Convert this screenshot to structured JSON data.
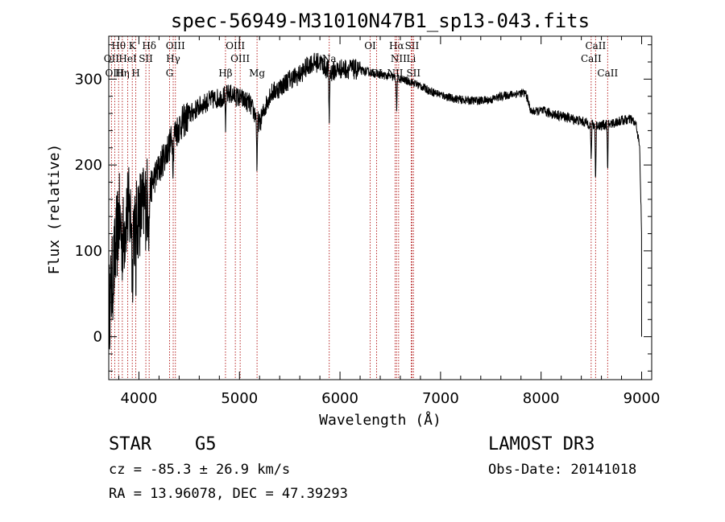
{
  "chart_data": {
    "type": "line",
    "title": "spec-56949-M31010N47B1_sp13-043.fits",
    "xlabel": "Wavelength (Å)",
    "ylabel": "Flux (relative)",
    "xlim": [
      3700,
      9100
    ],
    "ylim": [
      -50,
      350
    ],
    "xticks": [
      4000,
      5000,
      6000,
      7000,
      8000,
      9000
    ],
    "yticks": [
      0,
      100,
      200,
      300
    ],
    "grid": false,
    "spectrum_anchors": [
      [
        3700,
        30
      ],
      [
        3760,
        90
      ],
      [
        3800,
        140
      ],
      [
        3840,
        110
      ],
      [
        3880,
        150
      ],
      [
        3950,
        130
      ],
      [
        4000,
        145
      ],
      [
        4050,
        150
      ],
      [
        4100,
        165
      ],
      [
        4150,
        185
      ],
      [
        4200,
        195
      ],
      [
        4250,
        210
      ],
      [
        4300,
        222
      ],
      [
        4350,
        235
      ],
      [
        4400,
        245
      ],
      [
        4500,
        258
      ],
      [
        4600,
        268
      ],
      [
        4700,
        275
      ],
      [
        4800,
        278
      ],
      [
        4900,
        283
      ],
      [
        5000,
        278
      ],
      [
        5100,
        272
      ],
      [
        5200,
        248
      ],
      [
        5300,
        282
      ],
      [
        5400,
        290
      ],
      [
        5500,
        300
      ],
      [
        5600,
        305
      ],
      [
        5700,
        318
      ],
      [
        5800,
        320
      ],
      [
        5900,
        308
      ],
      [
        6000,
        312
      ],
      [
        6100,
        312
      ],
      [
        6200,
        310
      ],
      [
        6300,
        308
      ],
      [
        6400,
        305
      ],
      [
        6500,
        303
      ],
      [
        6600,
        300
      ],
      [
        6700,
        297
      ],
      [
        6800,
        292
      ],
      [
        6900,
        286
      ],
      [
        7000,
        282
      ],
      [
        7100,
        278
      ],
      [
        7200,
        276
      ],
      [
        7300,
        275
      ],
      [
        7400,
        275
      ],
      [
        7500,
        276
      ],
      [
        7600,
        280
      ],
      [
        7700,
        282
      ],
      [
        7800,
        284
      ],
      [
        7850,
        283
      ],
      [
        7900,
        262
      ],
      [
        8000,
        263
      ],
      [
        8100,
        260
      ],
      [
        8200,
        257
      ],
      [
        8300,
        254
      ],
      [
        8400,
        251
      ],
      [
        8500,
        247
      ],
      [
        8600,
        246
      ],
      [
        8700,
        248
      ],
      [
        8800,
        252
      ],
      [
        8900,
        253
      ],
      [
        8950,
        245
      ],
      [
        8980,
        220
      ],
      [
        9000,
        120
      ]
    ],
    "absorption_dips": [
      [
        3934,
        80
      ],
      [
        3969,
        70
      ],
      [
        4102,
        40
      ],
      [
        4340,
        35
      ],
      [
        4861,
        45
      ],
      [
        5175,
        70
      ],
      [
        5893,
        60
      ],
      [
        6563,
        40
      ],
      [
        8498,
        45
      ],
      [
        8542,
        70
      ],
      [
        8662,
        60
      ]
    ],
    "line_markers": [
      {
        "label": "Hθ",
        "x": 3798,
        "row": 1
      },
      {
        "label": "OII",
        "x": 3727,
        "row": 2
      },
      {
        "label": "OIII",
        "x": 3760,
        "row": 3
      },
      {
        "label": "Hη",
        "x": 3835,
        "row": 3
      },
      {
        "label": "K",
        "x": 3934,
        "row": 1
      },
      {
        "label": "HeI",
        "x": 3889,
        "row": 2
      },
      {
        "label": "H",
        "x": 3969,
        "row": 3
      },
      {
        "label": "Hδ",
        "x": 4102,
        "row": 1
      },
      {
        "label": "SII",
        "x": 4069,
        "row": 2
      },
      {
        "label": "OIII",
        "x": 4363,
        "row": 1
      },
      {
        "label": "Hγ",
        "x": 4341,
        "row": 2
      },
      {
        "label": "G",
        "x": 4305,
        "row": 3
      },
      {
        "label": "Hβ",
        "x": 4861,
        "row": 3
      },
      {
        "label": "OIII",
        "x": 4959,
        "row": 1
      },
      {
        "label": "OIII",
        "x": 5007,
        "row": 2
      },
      {
        "label": "Mg",
        "x": 5175,
        "row": 3
      },
      {
        "label": "Na",
        "x": 5893,
        "row": 2
      },
      {
        "label": "OI",
        "x": 6300,
        "row": 1
      },
      {
        "label": "OI",
        "x": 6364,
        "row": 3
      },
      {
        "label": "Hα",
        "x": 6563,
        "row": 1
      },
      {
        "label": "NII",
        "x": 6583,
        "row": 2
      },
      {
        "label": "NII",
        "x": 6548,
        "row": 3
      },
      {
        "label": "SII",
        "x": 6716,
        "row": 1
      },
      {
        "label": "Li",
        "x": 6708,
        "row": 2
      },
      {
        "label": "SII",
        "x": 6731,
        "row": 3
      },
      {
        "label": "CaII",
        "x": 8542,
        "row": 1
      },
      {
        "label": "CaII",
        "x": 8498,
        "row": 2
      },
      {
        "label": "CaII",
        "x": 8662,
        "row": 3
      }
    ]
  },
  "info": {
    "class": "STAR",
    "subclass": "G5",
    "survey": "LAMOST DR3",
    "cz": "cz = -85.3 ± 26.9 km/s",
    "obs_date": "Obs-Date: 20141018",
    "coords": "RA =  13.96078, DEC =  47.39293"
  }
}
